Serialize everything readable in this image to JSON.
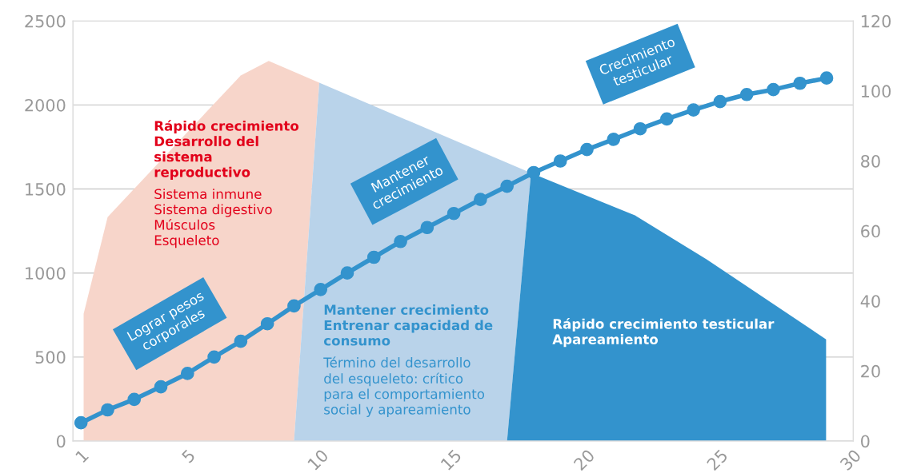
{
  "chart_data": {
    "type": "area",
    "series": [
      {
        "color": "#f7d5ca",
        "x": [
          1.1,
          1.1,
          2.0,
          7.0,
          8.05,
          9.95,
          9.0
        ],
        "values": [
          0,
          757,
          1333,
          2176,
          2262,
          2133,
          0
        ]
      },
      {
        "color": "#b9d3ea",
        "x": [
          9.0,
          9.95,
          17.9,
          17.0
        ],
        "values": [
          0,
          2133,
          1595,
          0
        ]
      },
      {
        "color": "#3393cd",
        "x": [
          17.0,
          17.9,
          21.8,
          24.5,
          28.98,
          28.98
        ],
        "values": [
          0,
          1595,
          1343,
          1081,
          605,
          0
        ]
      },
      {
        "type": "line",
        "axis": "y2",
        "color": "#3393cd",
        "marker": "circle",
        "x": [
          1,
          2,
          3,
          4,
          5,
          6,
          7,
          8,
          9,
          10,
          11,
          12,
          13,
          14,
          15,
          16,
          17,
          18,
          19,
          20,
          21,
          22,
          23,
          24,
          25,
          26,
          27,
          28,
          29
        ],
        "values": [
          5.2,
          8.9,
          11.9,
          15.5,
          19.3,
          24,
          28.5,
          33.5,
          38.6,
          43.3,
          48,
          52.5,
          57,
          61,
          65,
          69,
          72.8,
          76.7,
          80,
          83.3,
          86.2,
          89.2,
          92,
          94.6,
          97,
          99,
          100.4,
          102.2,
          103.7
        ]
      }
    ],
    "xlim": [
      0.7,
      30
    ],
    "xticks": [
      1,
      5,
      10,
      15,
      20,
      25,
      30
    ],
    "ylim": [
      0,
      2500
    ],
    "yticks": [
      0,
      500,
      1000,
      1500,
      2000,
      2500
    ],
    "y2lim": [
      0,
      120
    ],
    "y2ticks": [
      0,
      20,
      40,
      60,
      80,
      100,
      120
    ],
    "grid": "y",
    "annotations": [
      "Rápido crecimiento\nDesarrollo del\nsistema\nreproductivo",
      "Sistema inmune\nSistema digestivo\nMúsculos\nEsqueleto",
      "Mantener crecimiento\nEntrenar capacidad de\nconsumo",
      "Término del desarrollo\ndel esqueleto: crítico\npara el comportamiento\nsocial y apareamiento",
      "Rápido crecimiento testicular\nApareamiento",
      "Lograr pesos\ncorporales",
      "Mantener\ncrecimiento",
      "Crecimiento\ntesticular"
    ]
  }
}
